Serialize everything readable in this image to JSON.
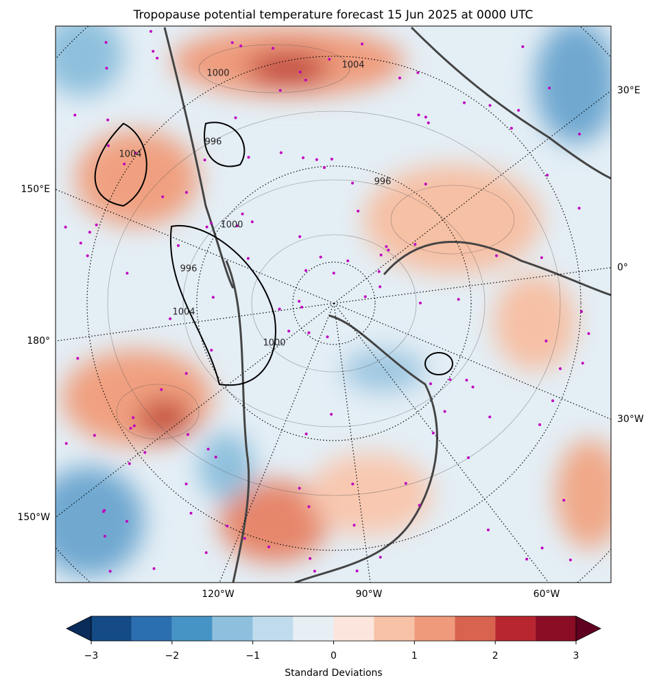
{
  "chart_data": {
    "type": "map",
    "title": "Tropopause potential temperature forecast 15 Jun 2025 at 0000 UTC",
    "graticule_labels": [
      "30°E",
      "150°E",
      "0°",
      "180°",
      "30°W",
      "150°W",
      "120°W",
      "90°W",
      "60°W"
    ],
    "contour_labels": [
      1000,
      1004,
      996,
      1000,
      996,
      996,
      1004,
      1000,
      1004
    ],
    "colorbar": {
      "label": "Standard Deviations",
      "bounds": [
        -3,
        -2.5,
        -2,
        -1.5,
        -1,
        -0.5,
        0,
        0.5,
        1,
        1.5,
        2,
        2.5,
        3
      ],
      "colors": [
        "#144b87",
        "#2c6fb0",
        "#4694c5",
        "#8ec0dd",
        "#c0dcec",
        "#e7eff5",
        "#fbe5dc",
        "#f8c2a7",
        "#ef9b7b",
        "#d8634f",
        "#b8272f",
        "#8a0c25"
      ],
      "under_color": "#0a2c5a",
      "over_color": "#5f0020",
      "ticks": [
        {
          "value": -3,
          "label": "−3"
        },
        {
          "value": -2,
          "label": "−2"
        },
        {
          "value": -1,
          "label": "−1"
        },
        0,
        1,
        2,
        3
      ]
    }
  }
}
